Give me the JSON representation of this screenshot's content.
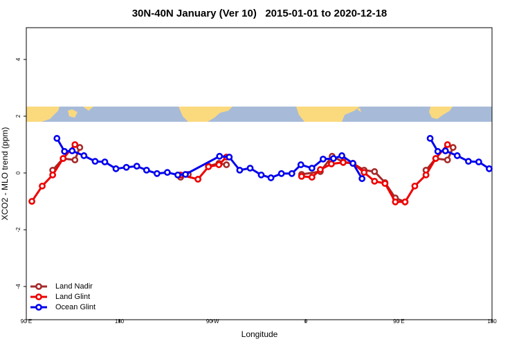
{
  "chart_data": {
    "type": "line",
    "title": "30N-40N January (Ver 10)   2015-01-01 to 2020-12-18",
    "x_label": "Longitude",
    "y_label": "XCO2 - MLO trend (ppm)",
    "xlim": [
      90,
      540
    ],
    "ylim": [
      -5.17,
      5.12
    ],
    "xticks": [
      {
        "value": 90,
        "label": "90 E"
      },
      {
        "value": 180,
        "label": "180"
      },
      {
        "value": 270,
        "label": "90 W"
      },
      {
        "value": 360,
        "label": "0"
      },
      {
        "value": 450,
        "label": "90 E"
      },
      {
        "value": 540,
        "label": "180"
      }
    ],
    "yticks": [
      4,
      2,
      0,
      -2,
      -4
    ],
    "legend": "bottom-left",
    "series": [
      {
        "name": "Land Nadir",
        "color": "#a52a2a",
        "x": [
          115.5,
          125.6,
          137.0,
          141.7,
          null,
          239.1,
          246.5,
          null,
          266.0,
          276.1,
          283.4,
          null,
          356.0,
          374.1,
          385.5,
          396.2,
          405.6,
          416.4,
          426.5,
          436.6,
          446.6,
          456.0,
          null,
          476.2,
          485.6,
          497.0,
          502.4
        ],
        "values": [
          0.1,
          0.51,
          0.46,
          0.9,
          null,
          -0.15,
          -0.05,
          null,
          0.24,
          0.34,
          0.29,
          null,
          -0.05,
          0.05,
          0.59,
          0.39,
          0.34,
          0.1,
          0.05,
          -0.34,
          -0.88,
          -1.02,
          null,
          0.1,
          0.51,
          0.46,
          0.9
        ]
      },
      {
        "name": "Land Glint",
        "color": "#ee0000",
        "x": [
          95.4,
          105.4,
          115.5,
          125.6,
          137.0,
          null,
          239.1,
          255.9,
          266.0,
          276.1,
          283.4,
          null,
          356.0,
          366.0,
          374.1,
          384.8,
          396.2,
          405.6,
          416.4,
          426.5,
          436.6,
          446.6,
          456.0,
          465.4,
          476.2,
          485.6,
          497.0
        ],
        "values": [
          -1.0,
          -0.46,
          -0.07,
          0.51,
          1.0,
          null,
          -0.07,
          -0.22,
          0.22,
          0.29,
          0.56,
          null,
          -0.12,
          -0.15,
          0.12,
          0.32,
          0.37,
          0.34,
          0.02,
          -0.29,
          -0.37,
          -1.02,
          -1.02,
          -0.46,
          -0.07,
          0.51,
          1.0
        ]
      },
      {
        "name": "Ocean Glint",
        "color": "#0000ee",
        "x": [
          119.6,
          126.9,
          134.3,
          145.7,
          156.5,
          165.9,
          176.6,
          186.7,
          196.8,
          206.2,
          216.3,
          226.3,
          236.4,
          243.8,
          276.7,
          286.1,
          296.2,
          306.3,
          317.0,
          326.4,
          336.5,
          346.6,
          355.3,
          366.0,
          376.8,
          386.8,
          394.9,
          405.6,
          414.4,
          null,
          480.2,
          487.6,
          495.0,
          506.4,
          517.2,
          527.2,
          537.3
        ],
        "values": [
          1.22,
          0.76,
          0.78,
          0.61,
          0.41,
          0.39,
          0.15,
          0.2,
          0.24,
          0.1,
          -0.02,
          0.02,
          -0.07,
          -0.05,
          0.59,
          0.56,
          0.1,
          0.17,
          -0.07,
          -0.17,
          -0.02,
          -0.02,
          0.29,
          0.17,
          0.49,
          0.51,
          0.61,
          0.34,
          -0.2,
          null,
          1.22,
          0.76,
          0.78,
          0.61,
          0.41,
          0.39,
          0.15
        ]
      }
    ]
  }
}
